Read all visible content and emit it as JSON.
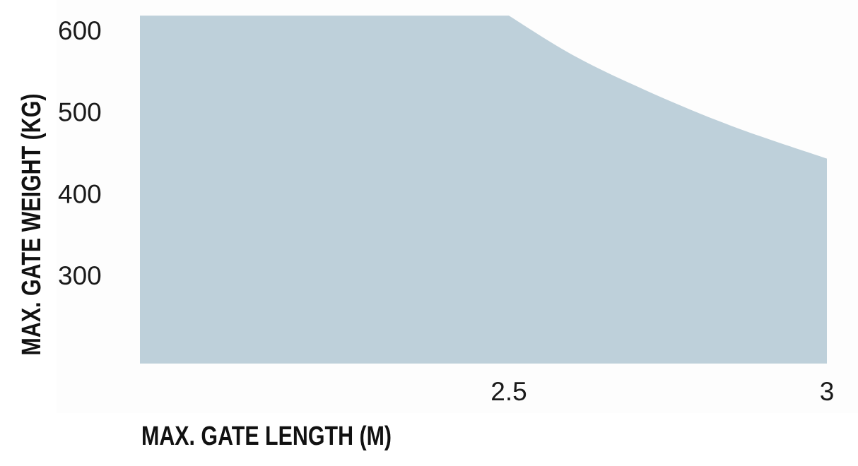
{
  "chart_data": {
    "type": "area",
    "title": "",
    "xlabel": "MAX. GATE LENGTH (M)",
    "ylabel": "MAX. GATE WEIGHT (KG)",
    "xlim": [
      1.92,
      3.0
    ],
    "ylim": [
      192,
      618
    ],
    "x_ticks": [
      2.5,
      3
    ],
    "x_tick_labels": [
      "2.5",
      "3"
    ],
    "y_ticks": [
      600,
      500,
      400,
      300
    ],
    "y_tick_labels": [
      "600",
      "500",
      "400",
      "300"
    ],
    "grid": false,
    "series": [
      {
        "x": [
          1.92,
          2.5,
          2.6,
          2.714,
          2.85,
          3.0
        ],
        "y": [
          618,
          618,
          570,
          527,
          483,
          443
        ],
        "color": "#bed0da"
      }
    ]
  }
}
